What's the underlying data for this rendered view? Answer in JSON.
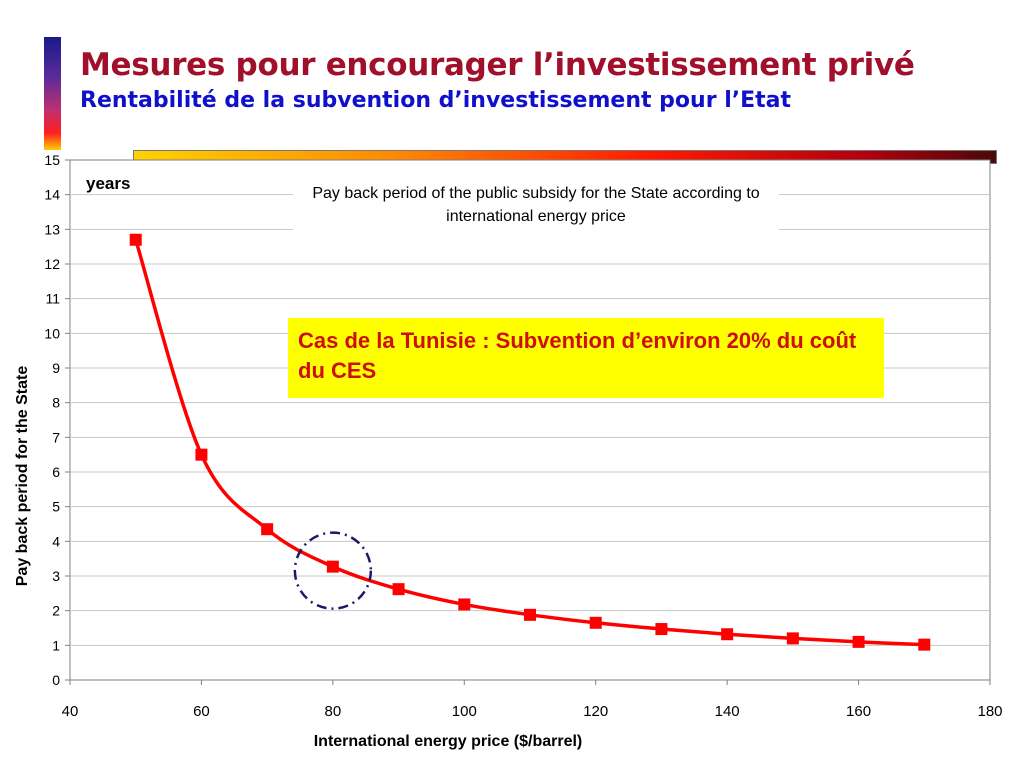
{
  "header": {
    "title": "Mesures pour encourager l’investissement privé",
    "subtitle": "Rentabilité de la subvention d’investissement pour l’Etat"
  },
  "chart_data": {
    "type": "line",
    "title": "Pay back period of the public subsidy for the State according to international energy price",
    "xlabel": "International energy price ($/barrel)",
    "ylabel": "Pay back period for the State",
    "y_unit_label": "years",
    "xlim": [
      40,
      180
    ],
    "ylim": [
      0,
      15
    ],
    "x_ticks": [
      40,
      60,
      80,
      100,
      120,
      140,
      160,
      180
    ],
    "y_ticks": [
      0,
      1,
      2,
      3,
      4,
      5,
      6,
      7,
      8,
      9,
      10,
      11,
      12,
      13,
      14,
      15
    ],
    "grid": true,
    "series": [
      {
        "x": [
          50,
          60,
          70,
          80,
          90,
          100,
          110,
          120,
          130,
          140,
          150,
          160,
          170
        ],
        "y": [
          12.7,
          6.5,
          4.35,
          3.27,
          2.62,
          2.18,
          1.88,
          1.65,
          1.47,
          1.32,
          1.2,
          1.1,
          1.02
        ],
        "color": "#ff0000",
        "marker": "square"
      }
    ],
    "highlight_point": {
      "x": 80,
      "y": 3.27
    },
    "annotation": "Cas de la Tunisie : Subvention d’environ 20% du coût du CES"
  },
  "colors": {
    "title": "#a0102a",
    "subtitle": "#1010cc",
    "series": "#ff0000",
    "annotation_bg": "#ffff00",
    "annotation_text": "#cc1010",
    "circle": "#1a1a6a"
  }
}
